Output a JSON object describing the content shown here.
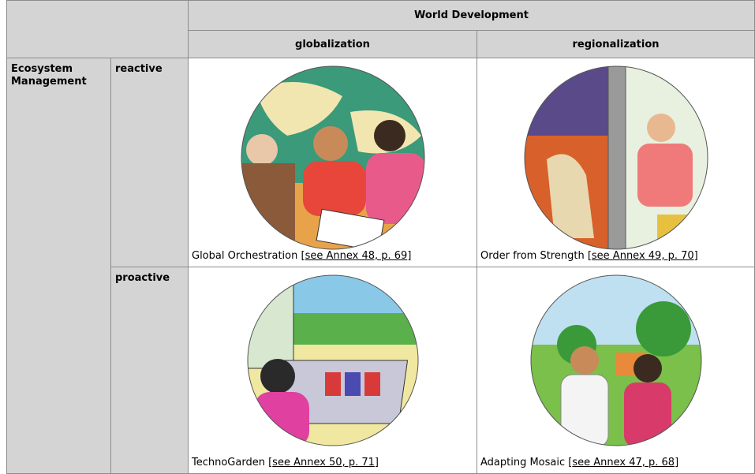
{
  "table": {
    "header": "World Development",
    "columns": [
      "globalization",
      "regionalization"
    ],
    "row_group": [
      "Ecosystem",
      "Management"
    ],
    "rows": [
      {
        "label": "reactive",
        "cells": [
          {
            "prefix": "Global Orchestration [",
            "link": "see Annex 48, p. 69",
            "suffix": "]"
          },
          {
            "prefix": "Order from Strength [",
            "link": "see Annex 49, p. 70",
            "suffix": "]"
          }
        ]
      },
      {
        "label": "proactive",
        "cells": [
          {
            "prefix": "TechnoGarden [",
            "link": "see Annex 50, p. 71",
            "suffix": "]"
          },
          {
            "prefix": "Adapting Mosaic [",
            "link": "see Annex 47, p. 68",
            "suffix": "]"
          }
        ]
      }
    ]
  }
}
